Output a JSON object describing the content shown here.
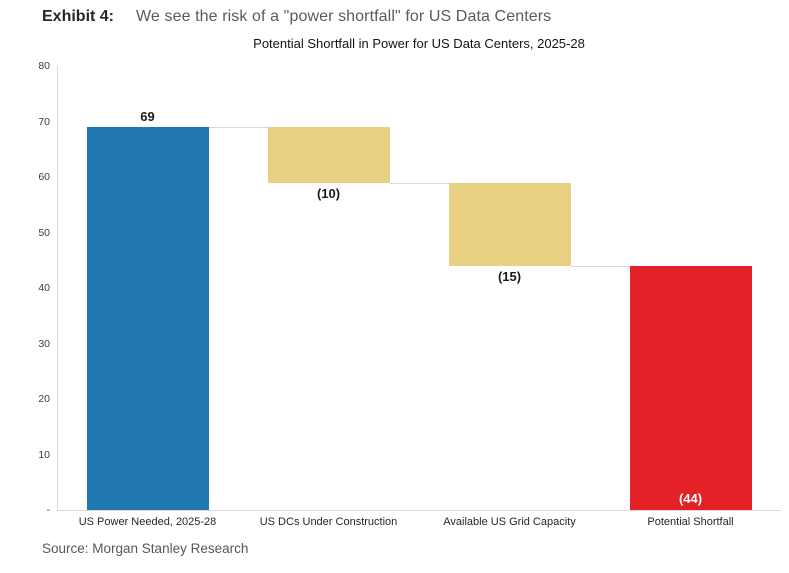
{
  "header": {
    "exhibit_label": "Exhibit 4:",
    "title": "We see the risk of a \"power shortfall\" for US Data Centers"
  },
  "chart_data": {
    "type": "bar",
    "subtype": "waterfall",
    "title": "Potential Shortfall in Power for US Data Centers, 2025-28",
    "categories": [
      "US Power Needed, 2025-28",
      "US DCs Under Construction",
      "Available US Grid Capacity",
      "Potential Shortfall"
    ],
    "series": [
      {
        "category": "US Power Needed, 2025-28",
        "value": 69,
        "start": 0,
        "end": 69,
        "label": "69",
        "color": "#2178b1",
        "label_position": "above",
        "label_color": "#1a1a1a"
      },
      {
        "category": "US DCs Under Construction",
        "value": -10,
        "start": 69,
        "end": 59,
        "label": "(10)",
        "color": "#e9cf82",
        "label_position": "below",
        "label_color": "#1a1a1a"
      },
      {
        "category": "Available US Grid Capacity",
        "value": -15,
        "start": 59,
        "end": 44,
        "label": "(15)",
        "color": "#e9cf82",
        "label_position": "below",
        "label_color": "#1a1a1a"
      },
      {
        "category": "Potential Shortfall",
        "value": -44,
        "start": 44,
        "end": 0,
        "label": "(44)",
        "color": "#e32127",
        "label_position": "inside-bottom",
        "label_color": "#ffffff"
      }
    ],
    "ylim": [
      0,
      80
    ],
    "yticks": [
      {
        "value": 80,
        "label": "80"
      },
      {
        "value": 70,
        "label": "70"
      },
      {
        "value": 60,
        "label": "60"
      },
      {
        "value": 50,
        "label": "50"
      },
      {
        "value": 40,
        "label": "40"
      },
      {
        "value": 30,
        "label": "30"
      },
      {
        "value": 20,
        "label": "20"
      },
      {
        "value": 10,
        "label": "10"
      },
      {
        "value": 0,
        "label": "-"
      }
    ],
    "grid": false,
    "legend": false,
    "axis_color": "#d9d9d9",
    "connector_color": "#d9d9d9"
  },
  "footer": {
    "source": "Source: Morgan Stanley Research"
  }
}
